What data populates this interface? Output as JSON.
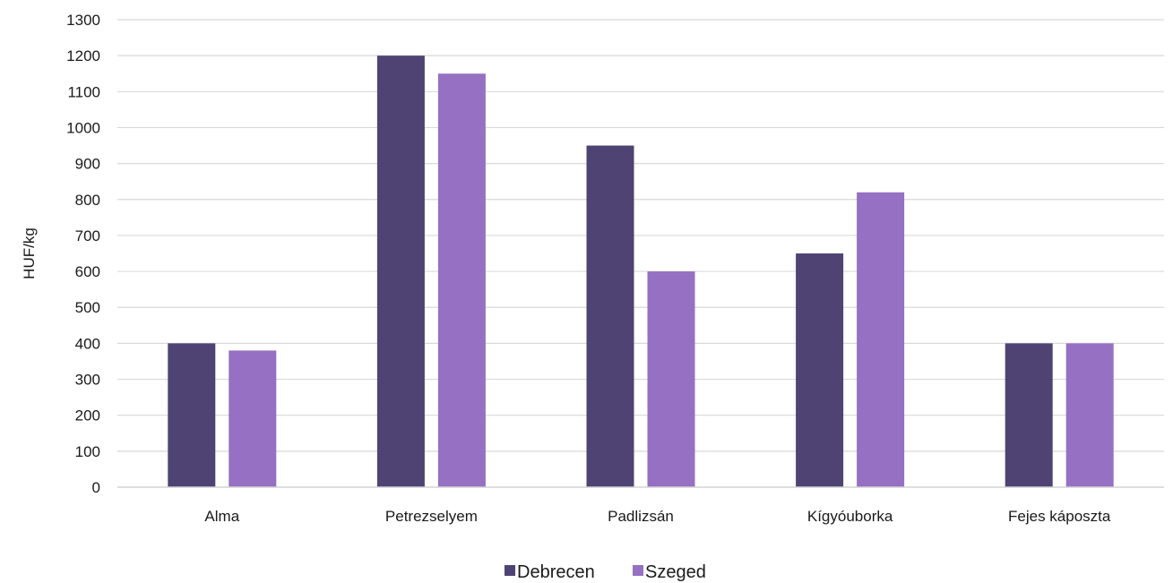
{
  "chart_data": {
    "type": "bar",
    "categories": [
      "Alma",
      "Petrezselyem",
      "Padlizsán",
      "Kígyóuborka",
      "Fejes káposzta"
    ],
    "series": [
      {
        "name": "Debrecen",
        "values": [
          400,
          1200,
          950,
          650,
          400
        ],
        "color": "#4e4373"
      },
      {
        "name": "Szeged",
        "values": [
          380,
          1150,
          600,
          820,
          400
        ],
        "color": "#9670c2"
      }
    ],
    "xlabel": "",
    "ylabel": "HUF/kg",
    "ylim": [
      0,
      1300
    ],
    "yticks": [
      "0",
      "100",
      "200",
      "300",
      "400",
      "500",
      "600",
      "700",
      "800",
      "900",
      "1000",
      "1100",
      "1200",
      "1300"
    ],
    "grid": true,
    "legend_position": "bottom"
  }
}
